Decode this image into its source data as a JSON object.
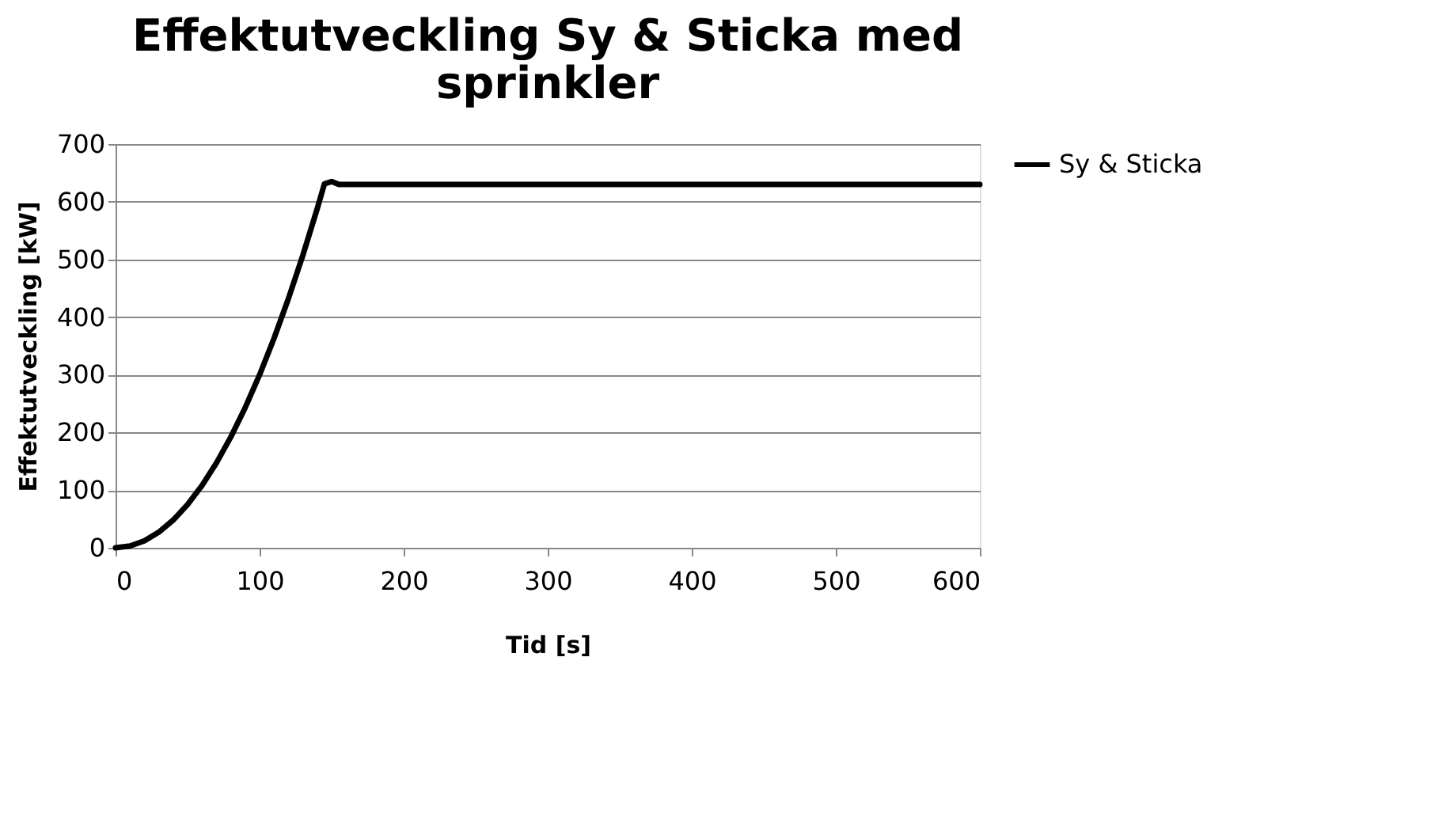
{
  "chart_data": {
    "type": "line",
    "title": "Effektutveckling Sy & Sticka med sprinkler",
    "xlabel": "Tid [s]",
    "ylabel": "Effektutveckling [kW]",
    "xlim": [
      0,
      600
    ],
    "xticks": [
      0,
      100,
      200,
      300,
      400,
      500,
      600
    ],
    "ylim": [
      0,
      700
    ],
    "yticks": [
      0,
      100,
      200,
      300,
      400,
      500,
      600,
      700
    ],
    "grid": "y",
    "legend": "right",
    "marker": "none",
    "line_style": "solid",
    "series": [
      {
        "name": "Sy & Sticka",
        "color": "#000000",
        "x": [
          0,
          10,
          20,
          30,
          40,
          50,
          60,
          70,
          80,
          90,
          100,
          110,
          120,
          130,
          140,
          145,
          150,
          155,
          600
        ],
        "values": [
          0,
          3,
          12,
          27,
          48,
          75,
          108,
          147,
          192,
          243,
          300,
          363,
          432,
          507,
          588,
          631,
          635,
          630,
          630
        ]
      }
    ]
  }
}
